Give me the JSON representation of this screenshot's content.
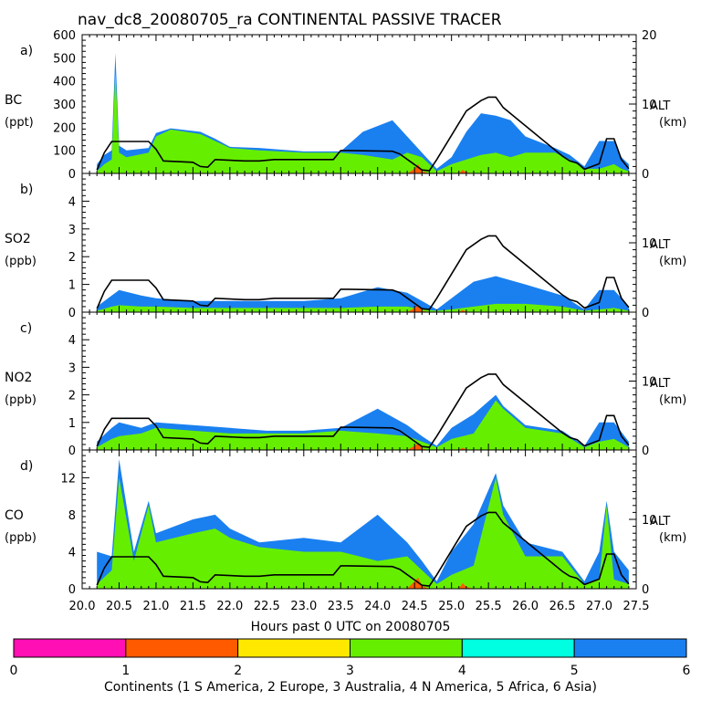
{
  "chart_data": {
    "type": "area",
    "title": "nav_dc8_20080705_ra CONTINENTAL PASSIVE TRACER",
    "xlabel": "Hours past 0 UTC on 20080705",
    "xlim": [
      20.0,
      27.5
    ],
    "x_ticks": [
      "20.0",
      "20.5",
      "21.0",
      "21.5",
      "22.0",
      "22.5",
      "23.0",
      "23.5",
      "24.0",
      "24.5",
      "25.0",
      "25.5",
      "26.0",
      "26.5",
      "27.0",
      "27.5"
    ],
    "right_axis": {
      "label": "ALT",
      "units": "(km)",
      "ylim": [
        0,
        20
      ],
      "tick_labels": [
        "0",
        "10",
        "20"
      ],
      "altitude_profile": {
        "x": [
          20.2,
          20.3,
          20.4,
          20.9,
          21.0,
          21.1,
          21.5,
          21.6,
          21.7,
          21.8,
          22.2,
          22.4,
          22.6,
          23.4,
          23.5,
          23.6,
          24.2,
          24.3,
          24.6,
          24.7,
          24.8,
          25.2,
          25.4,
          25.5,
          25.6,
          25.7,
          26.5,
          26.6,
          26.7,
          26.8,
          27.0,
          27.1,
          27.2,
          27.3,
          27.4
        ],
        "y": [
          0.5,
          3.0,
          4.6,
          4.6,
          3.5,
          1.8,
          1.6,
          1.0,
          0.9,
          2.0,
          1.8,
          1.8,
          2.0,
          2.0,
          3.3,
          3.3,
          3.2,
          2.8,
          0.5,
          0.4,
          2.0,
          9.0,
          10.5,
          11.0,
          11.0,
          9.5,
          2.5,
          1.8,
          1.5,
          0.6,
          1.4,
          5.0,
          5.0,
          2.0,
          0.7
        ]
      }
    },
    "panels": [
      {
        "letter": "a)",
        "species": "BC",
        "units": "(ppt)",
        "ylim": [
          0,
          600
        ],
        "tick_labels": [
          "0",
          "100",
          "200",
          "300",
          "400",
          "500",
          "600"
        ],
        "alt_tick_labels": [
          "0",
          "10",
          "20"
        ],
        "series": [
          {
            "name": "2 Europe",
            "x": [
              20.2,
              24.4,
              24.5,
              24.55,
              24.6,
              24.7,
              25.1,
              25.15,
              25.2,
              25.3,
              27.4
            ],
            "values": [
              0,
              0,
              20,
              40,
              10,
              0,
              0,
              15,
              5,
              0,
              0
            ]
          },
          {
            "name": "4 N America",
            "x": [
              20.2,
              20.3,
              20.4,
              20.45,
              20.5,
              20.6,
              20.9,
              21.0,
              21.2,
              21.6,
              21.8,
              22.0,
              22.4,
              23.0,
              23.5,
              23.8,
              24.2,
              24.4,
              24.6,
              24.8,
              25.0,
              25.2,
              25.4,
              25.6,
              25.8,
              26.0,
              26.4,
              26.6,
              26.8,
              27.0,
              27.2,
              27.3,
              27.4
            ],
            "values": [
              10,
              40,
              60,
              440,
              90,
              70,
              90,
              160,
              190,
              170,
              140,
              110,
              100,
              90,
              90,
              80,
              60,
              90,
              70,
              10,
              40,
              60,
              80,
              90,
              70,
              90,
              90,
              60,
              20,
              20,
              40,
              20,
              10
            ]
          },
          {
            "name": "6 Asia",
            "x": [
              20.2,
              20.3,
              20.4,
              20.45,
              20.5,
              20.6,
              20.9,
              21.0,
              21.2,
              21.6,
              21.8,
              22.0,
              22.4,
              23.0,
              23.5,
              23.8,
              24.2,
              24.4,
              24.6,
              24.8,
              25.0,
              25.2,
              25.4,
              25.6,
              25.8,
              26.0,
              26.4,
              26.6,
              26.8,
              27.0,
              27.2,
              27.3,
              27.4
            ],
            "values": [
              40,
              80,
              100,
              520,
              120,
              100,
              110,
              175,
              195,
              180,
              150,
              115,
              110,
              95,
              95,
              180,
              230,
              160,
              90,
              20,
              70,
              180,
              260,
              250,
              230,
              160,
              110,
              80,
              30,
              140,
              140,
              70,
              40
            ]
          }
        ]
      },
      {
        "letter": "b)",
        "species": "SO2",
        "units": "(ppb)",
        "ylim": [
          0,
          5
        ],
        "tick_labels": [
          "0",
          "1",
          "2",
          "3",
          "4"
        ],
        "alt_tick_labels": [
          "0",
          "10"
        ],
        "series": [
          {
            "name": "2 Europe",
            "x": [
              20.2,
              24.4,
              24.5,
              24.55,
              24.6,
              24.7,
              25.1,
              25.15,
              25.2,
              25.3,
              27.4
            ],
            "values": [
              0,
              0,
              0.15,
              0.25,
              0.05,
              0,
              0,
              0.08,
              0.02,
              0,
              0
            ]
          },
          {
            "name": "4 N America",
            "x": [
              20.2,
              20.4,
              20.5,
              20.8,
              21.0,
              21.5,
              22.0,
              22.5,
              23.0,
              23.5,
              24.0,
              24.4,
              24.6,
              24.8,
              25.0,
              25.3,
              25.6,
              26.0,
              26.5,
              26.8,
              27.0,
              27.2,
              27.4
            ],
            "values": [
              0.05,
              0.2,
              0.25,
              0.2,
              0.2,
              0.15,
              0.15,
              0.15,
              0.15,
              0.15,
              0.2,
              0.2,
              0.1,
              0.05,
              0.1,
              0.2,
              0.3,
              0.3,
              0.2,
              0.05,
              0.1,
              0.15,
              0.05
            ]
          },
          {
            "name": "6 Asia",
            "x": [
              20.2,
              20.4,
              20.5,
              20.8,
              21.0,
              21.5,
              22.0,
              22.5,
              23.0,
              23.5,
              24.0,
              24.4,
              24.6,
              24.8,
              25.0,
              25.3,
              25.6,
              26.0,
              26.5,
              26.8,
              27.0,
              27.2,
              27.4
            ],
            "values": [
              0.2,
              0.6,
              0.8,
              0.6,
              0.5,
              0.4,
              0.4,
              0.4,
              0.4,
              0.5,
              0.9,
              0.7,
              0.4,
              0.1,
              0.5,
              1.1,
              1.3,
              1.0,
              0.6,
              0.1,
              0.8,
              0.8,
              0.2
            ]
          }
        ]
      },
      {
        "letter": "c)",
        "species": "NO2",
        "units": "(ppb)",
        "ylim": [
          0,
          5
        ],
        "tick_labels": [
          "0",
          "1",
          "2",
          "3",
          "4"
        ],
        "alt_tick_labels": [
          "0",
          "10"
        ],
        "series": [
          {
            "name": "2 Europe",
            "x": [
              20.2,
              24.4,
              24.5,
              24.55,
              24.6,
              24.7,
              25.1,
              25.15,
              25.2,
              25.3,
              27.4
            ],
            "values": [
              0,
              0,
              0.15,
              0.25,
              0.05,
              0,
              0,
              0.08,
              0.02,
              0,
              0
            ]
          },
          {
            "name": "4 N America",
            "x": [
              20.2,
              20.4,
              20.5,
              20.8,
              21.0,
              21.5,
              22.0,
              22.5,
              23.0,
              23.5,
              24.0,
              24.4,
              24.6,
              24.8,
              25.0,
              25.3,
              25.6,
              25.7,
              26.0,
              26.5,
              26.8,
              27.0,
              27.2,
              27.4
            ],
            "values": [
              0.1,
              0.4,
              0.5,
              0.6,
              0.8,
              0.7,
              0.6,
              0.6,
              0.6,
              0.7,
              0.6,
              0.5,
              0.3,
              0.1,
              0.4,
              0.6,
              1.8,
              1.5,
              0.8,
              0.6,
              0.1,
              0.3,
              0.4,
              0.1
            ]
          },
          {
            "name": "6 Asia",
            "x": [
              20.2,
              20.4,
              20.5,
              20.8,
              21.0,
              21.5,
              22.0,
              22.5,
              23.0,
              23.5,
              24.0,
              24.4,
              24.6,
              24.8,
              25.0,
              25.3,
              25.6,
              25.7,
              26.0,
              26.5,
              26.8,
              27.0,
              27.2,
              27.4
            ],
            "values": [
              0.3,
              0.8,
              1.0,
              0.8,
              1.0,
              0.9,
              0.8,
              0.7,
              0.7,
              0.8,
              1.5,
              0.9,
              0.5,
              0.15,
              0.8,
              1.3,
              2.0,
              1.6,
              0.9,
              0.7,
              0.15,
              1.0,
              1.0,
              0.3
            ]
          }
        ]
      },
      {
        "letter": "d)",
        "species": "CO",
        "units": "(ppb)",
        "ylim": [
          0,
          15
        ],
        "tick_labels": [
          "0",
          "4",
          "8",
          "12"
        ],
        "alt_tick_labels": [
          "0",
          "10"
        ],
        "series": [
          {
            "name": "2 Europe",
            "x": [
              20.2,
              24.4,
              24.5,
              24.55,
              24.6,
              24.7,
              25.1,
              25.15,
              25.2,
              25.3,
              27.4
            ],
            "values": [
              0,
              0,
              0.8,
              1.2,
              0.3,
              0,
              0,
              0.6,
              0.2,
              0,
              0
            ]
          },
          {
            "name": "4 N America",
            "x": [
              20.2,
              20.4,
              20.5,
              20.7,
              20.9,
              21.0,
              21.5,
              21.8,
              22.0,
              22.4,
              23.0,
              23.5,
              24.0,
              24.4,
              24.6,
              24.8,
              25.0,
              25.3,
              25.6,
              25.7,
              26.0,
              26.5,
              26.8,
              27.0,
              27.1,
              27.2,
              27.4
            ],
            "values": [
              0.5,
              2.0,
              12.0,
              3.0,
              9.0,
              5.0,
              6.0,
              6.5,
              5.5,
              4.5,
              4.0,
              4.0,
              3.0,
              3.5,
              2.0,
              0.5,
              1.5,
              2.5,
              12.0,
              8.0,
              3.5,
              3.5,
              0.5,
              1.0,
              9.0,
              1.0,
              0.5
            ]
          },
          {
            "name": "6 Asia",
            "x": [
              20.2,
              20.4,
              20.5,
              20.7,
              20.9,
              21.0,
              21.5,
              21.8,
              22.0,
              22.4,
              23.0,
              23.5,
              24.0,
              24.4,
              24.6,
              24.8,
              25.0,
              25.3,
              25.6,
              25.7,
              26.0,
              26.5,
              26.8,
              27.0,
              27.1,
              27.2,
              27.4
            ],
            "values": [
              4.0,
              3.5,
              14.0,
              4.0,
              9.5,
              6.0,
              7.5,
              8.0,
              6.5,
              5.0,
              5.5,
              5.0,
              8.0,
              5.0,
              3.0,
              0.8,
              4.0,
              7.0,
              12.5,
              9.0,
              5.0,
              4.0,
              0.8,
              4.0,
              9.5,
              4.0,
              2.0
            ]
          }
        ]
      }
    ],
    "colorbar": {
      "label": "Continents (1 S America, 2 Europe, 3 Australia, 4 N America, 5 Africa, 6 Asia)",
      "tick_labels": [
        "0",
        "1",
        "2",
        "3",
        "4",
        "5",
        "6"
      ],
      "colors": [
        "#ff0fb4",
        "#ff5a00",
        "#ffe800",
        "#66ee00",
        "#00ffe0",
        "#1a80f0"
      ],
      "series_colors": {
        "1 S America": "#ff0fb4",
        "2 Europe": "#ff5a00",
        "3 Australia": "#ffe800",
        "4 N America": "#66ee00",
        "5 Africa": "#00ffe0",
        "6 Asia": "#1a80f0"
      }
    }
  }
}
